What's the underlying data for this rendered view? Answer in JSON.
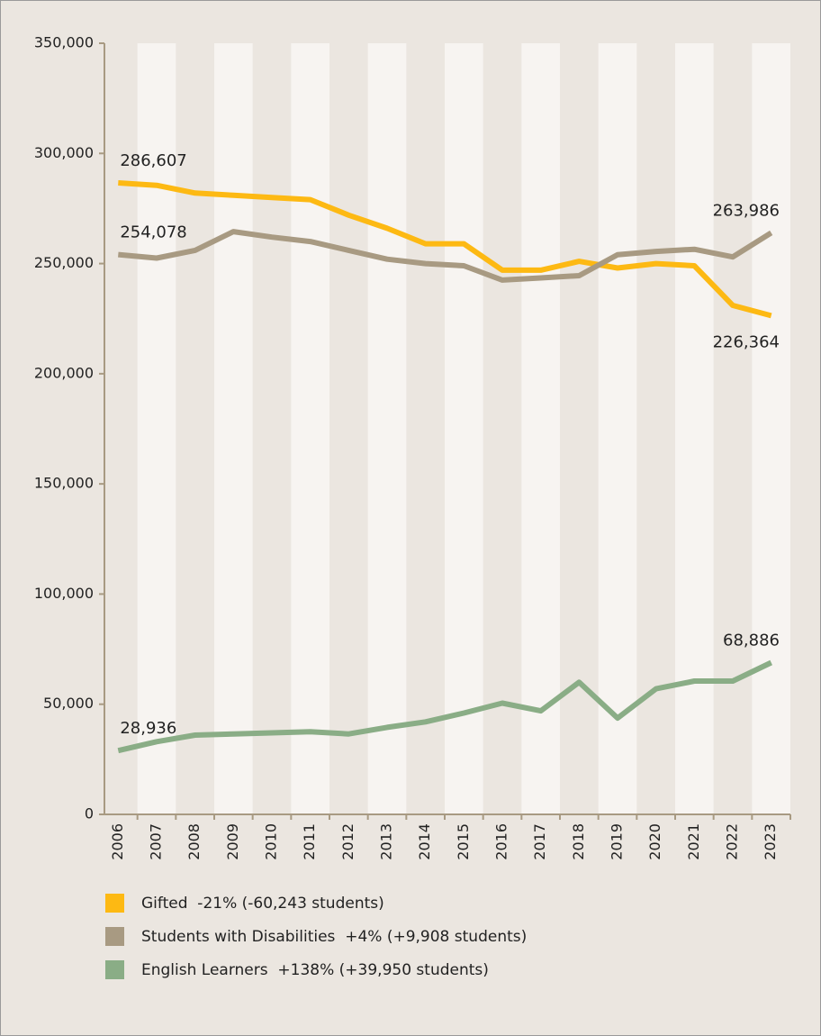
{
  "chart_data": {
    "type": "line",
    "categories": [
      "2006",
      "2007",
      "2008",
      "2009",
      "2010",
      "2011",
      "2012",
      "2013",
      "2014",
      "2015",
      "2016",
      "2017",
      "2018",
      "2019",
      "2020",
      "2021",
      "2022",
      "2023"
    ],
    "series": [
      {
        "name": "Gifted  -21% (-60,243 students)",
        "color": "#fdb913",
        "values": [
          286607,
          285500,
          282000,
          281000,
          280000,
          279000,
          272000,
          266000,
          259000,
          259000,
          247000,
          247000,
          251000,
          248000,
          250000,
          249000,
          231000,
          226364
        ],
        "value_labels": [
          "286,607",
          null,
          null,
          null,
          null,
          null,
          null,
          null,
          null,
          null,
          null,
          null,
          null,
          null,
          null,
          null,
          null,
          "226,364"
        ]
      },
      {
        "name": "Students with Disabilities  +4% (+9,908 students)",
        "color": "#a89a82",
        "values": [
          254078,
          252500,
          256000,
          264500,
          262000,
          260000,
          256000,
          252000,
          250000,
          249000,
          242500,
          243500,
          244500,
          254000,
          255500,
          256500,
          253000,
          263986
        ],
        "value_labels": [
          "254,078",
          null,
          null,
          null,
          null,
          null,
          null,
          null,
          null,
          null,
          null,
          null,
          null,
          null,
          null,
          null,
          null,
          "263,986"
        ]
      },
      {
        "name": "English Learners  +138% (+39,950 students)",
        "color": "#8aad86",
        "values": [
          28936,
          33000,
          36000,
          36500,
          37000,
          37500,
          36500,
          39500,
          42000,
          46000,
          50500,
          47000,
          60000,
          43700,
          57000,
          60500,
          60500,
          68886
        ],
        "value_labels": [
          "28,936",
          null,
          null,
          null,
          null,
          null,
          null,
          null,
          null,
          null,
          null,
          null,
          null,
          null,
          null,
          null,
          null,
          "68,886"
        ]
      }
    ],
    "ylim": [
      0,
      350000
    ],
    "yticks": [
      0,
      {
        "value": 50000,
        "label": "50,000"
      },
      {
        "value": 100000,
        "label": "100,000"
      },
      {
        "value": 150000,
        "label": "150,000"
      },
      {
        "value": 200000,
        "label": "200,000"
      },
      {
        "value": 250000,
        "label": "250,000"
      },
      {
        "value": 300000,
        "label": "300,000"
      },
      {
        "value": 350000,
        "label": "350,000"
      }
    ],
    "stripes": true
  }
}
